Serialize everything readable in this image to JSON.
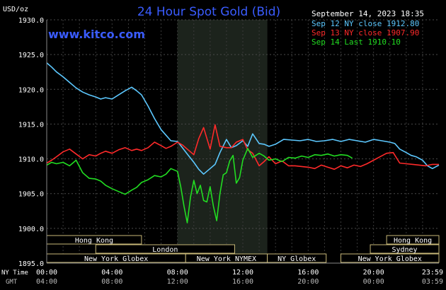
{
  "header": {
    "title": "24 Hour Spot Gold (Bid)",
    "y_unit": "USD/oz",
    "date_stamp": "September 14, 2023 18:35",
    "watermark": "www.kitco.com"
  },
  "legend": [
    {
      "label": "Sep 12 NY close 1912.80",
      "color": "#5cc8ff"
    },
    {
      "label": "Sep 13 NY close 1907.90",
      "color": "#ff2a2a"
    },
    {
      "label": "Sep 14 Last 1910.10",
      "color": "#22dd22"
    }
  ],
  "chart_data": {
    "type": "line",
    "title": "24 Hour Spot Gold (Bid)",
    "ylabel": "USD/oz",
    "ylim": [
      1895,
      1930
    ],
    "xlim": [
      0,
      24
    ],
    "grid": true,
    "legend_position": "top-right",
    "y_ticks": [
      "1930.0",
      "1925.0",
      "1920.0",
      "1915.0",
      "1910.0",
      "1905.0",
      "1900.0",
      "1895.0"
    ],
    "y_tick_values": [
      1930,
      1925,
      1920,
      1915,
      1910,
      1905,
      1900,
      1895
    ],
    "x_tick_positions": [
      0,
      4,
      8,
      12,
      16,
      20,
      23.98
    ],
    "x_row_label_ny": "NY Time",
    "x_row_label_gmt": "GMT",
    "x_ticks_ny": [
      "00:00",
      "04:00",
      "08:00",
      "12:00",
      "16:00",
      "20:00",
      "23:59"
    ],
    "x_ticks_gmt": [
      "04:00",
      "08:00",
      "12:00",
      "16:00",
      "20:00",
      "00:00",
      "03:59"
    ],
    "highlight_range": [
      8,
      13.5
    ],
    "series": [
      {
        "name": "Sep 12 NY close 1912.80",
        "color": "#5cc8ff",
        "x": [
          0,
          0.3,
          0.6,
          1,
          1.4,
          1.8,
          2.2,
          2.6,
          3,
          3.3,
          3.6,
          4,
          4.4,
          4.8,
          5.2,
          5.5,
          5.8,
          6.2,
          6.6,
          7,
          7.3,
          7.6,
          8,
          8.3,
          8.6,
          9,
          9.3,
          9.6,
          10,
          10.3,
          10.6,
          11,
          11.3,
          11.6,
          12,
          12.3,
          12.6,
          13,
          13.3,
          13.6,
          14,
          14.5,
          15,
          15.5,
          16,
          16.5,
          17,
          17.5,
          18,
          18.5,
          19,
          19.5,
          20,
          20.5,
          21,
          21.3,
          21.6,
          22,
          22.3,
          22.6,
          23,
          23.3,
          23.6,
          24
        ],
        "y": [
          1923.8,
          1923.2,
          1922.5,
          1921.8,
          1921.0,
          1920.2,
          1919.6,
          1919.2,
          1918.9,
          1918.6,
          1918.8,
          1918.6,
          1919.2,
          1919.8,
          1920.3,
          1919.8,
          1919.2,
          1917.6,
          1915.8,
          1914.2,
          1913.4,
          1912.6,
          1912.5,
          1911.6,
          1910.7,
          1909.5,
          1908.5,
          1907.8,
          1908.6,
          1909.2,
          1910.9,
          1912.8,
          1911.6,
          1911.9,
          1912.6,
          1911.8,
          1913.6,
          1912.2,
          1912.1,
          1911.8,
          1912.1,
          1912.8,
          1912.7,
          1912.6,
          1912.8,
          1912.5,
          1912.6,
          1912.8,
          1912.5,
          1912.8,
          1912.6,
          1912.4,
          1912.8,
          1912.6,
          1912.4,
          1912.2,
          1911.4,
          1910.9,
          1910.5,
          1910.3,
          1909.8,
          1909.0,
          1908.6,
          1909.1
        ]
      },
      {
        "name": "Sep 13 NY close 1907.90",
        "color": "#ff2a2a",
        "x": [
          0,
          0.3,
          0.6,
          1,
          1.4,
          1.8,
          2.2,
          2.6,
          3,
          3.3,
          3.6,
          4,
          4.4,
          4.8,
          5.2,
          5.5,
          5.8,
          6.2,
          6.6,
          7,
          7.3,
          7.6,
          8,
          8.3,
          8.6,
          9,
          9.3,
          9.6,
          10,
          10.3,
          10.6,
          11,
          11.3,
          11.6,
          12,
          12.3,
          12.6,
          13,
          13.3,
          13.6,
          14,
          14.4,
          14.8,
          15.2,
          15.6,
          16,
          16.4,
          16.8,
          17.2,
          17.6,
          18,
          18.4,
          18.8,
          19.2,
          19.6,
          20,
          20.4,
          20.8,
          21.2,
          21.6,
          22,
          22.4,
          22.8,
          23.2,
          23.6,
          24
        ],
        "y": [
          1909.4,
          1909.8,
          1910.3,
          1911.0,
          1911.4,
          1910.7,
          1910.0,
          1910.6,
          1910.4,
          1910.8,
          1911.1,
          1910.8,
          1911.3,
          1911.6,
          1911.2,
          1911.4,
          1911.2,
          1911.6,
          1912.4,
          1911.9,
          1911.5,
          1911.8,
          1912.4,
          1912.0,
          1911.4,
          1910.6,
          1912.9,
          1914.5,
          1911.4,
          1914.9,
          1911.8,
          1911.6,
          1911.6,
          1912.4,
          1912.8,
          1911.3,
          1910.8,
          1909.0,
          1909.6,
          1910.3,
          1909.3,
          1909.7,
          1909.0,
          1909.0,
          1908.9,
          1908.8,
          1908.6,
          1909.1,
          1908.8,
          1908.5,
          1909.0,
          1908.7,
          1909.1,
          1908.9,
          1909.3,
          1909.8,
          1910.3,
          1910.8,
          1910.9,
          1909.4,
          1909.3,
          1909.2,
          1909.1,
          1909.0,
          1909.2,
          1909.2
        ]
      },
      {
        "name": "Sep 14 Last 1910.10",
        "color": "#22dd22",
        "x": [
          0,
          0.3,
          0.6,
          1,
          1.4,
          1.8,
          2.2,
          2.6,
          3,
          3.3,
          3.6,
          4,
          4.4,
          4.8,
          5.2,
          5.5,
          5.8,
          6.2,
          6.6,
          7,
          7.3,
          7.6,
          8,
          8.2,
          8.4,
          8.6,
          8.8,
          9,
          9.2,
          9.4,
          9.6,
          9.8,
          10,
          10.2,
          10.4,
          10.6,
          10.8,
          11,
          11.2,
          11.4,
          11.6,
          11.8,
          12,
          12.3,
          12.6,
          13,
          13.3,
          13.6,
          14,
          14.4,
          14.8,
          15.2,
          15.6,
          16,
          16.4,
          16.8,
          17.2,
          17.6,
          18,
          18.4,
          18.7
        ],
        "y": [
          1909.1,
          1909.5,
          1909.3,
          1909.5,
          1909.0,
          1909.8,
          1908.0,
          1907.2,
          1907.1,
          1906.8,
          1906.2,
          1905.7,
          1905.3,
          1904.9,
          1905.5,
          1905.9,
          1906.6,
          1907.0,
          1907.6,
          1907.4,
          1907.8,
          1908.6,
          1908.2,
          1906.0,
          1903.2,
          1900.8,
          1904.5,
          1906.9,
          1905.0,
          1906.2,
          1904.0,
          1903.8,
          1906.0,
          1903.2,
          1901.1,
          1905.0,
          1907.7,
          1908.0,
          1909.7,
          1910.5,
          1906.5,
          1907.3,
          1909.8,
          1911.5,
          1910.2,
          1910.8,
          1910.4,
          1909.8,
          1910.0,
          1909.6,
          1910.2,
          1910.1,
          1910.4,
          1910.2,
          1910.6,
          1910.5,
          1910.7,
          1910.4,
          1910.6,
          1910.5,
          1910.1
        ]
      }
    ]
  },
  "sessions_left": [
    {
      "label": "Hong Kong",
      "start": 0,
      "end": 5.8
    },
    {
      "label": "London",
      "start": 3,
      "end": 11.5
    },
    {
      "label": "New York Globex",
      "start": 0,
      "end": 8.5
    },
    {
      "label": "New York NYMEX",
      "start": 8.5,
      "end": 13.5
    },
    {
      "label": "NY Globex",
      "start": 13.5,
      "end": 17.1
    }
  ],
  "sessions_right": [
    {
      "label": "Hong Kong",
      "start": 20.8,
      "end": 24
    },
    {
      "label": "Sydney",
      "start": 19.8,
      "end": 24
    },
    {
      "label": "New York Globex",
      "start": 18,
      "end": 24
    }
  ]
}
